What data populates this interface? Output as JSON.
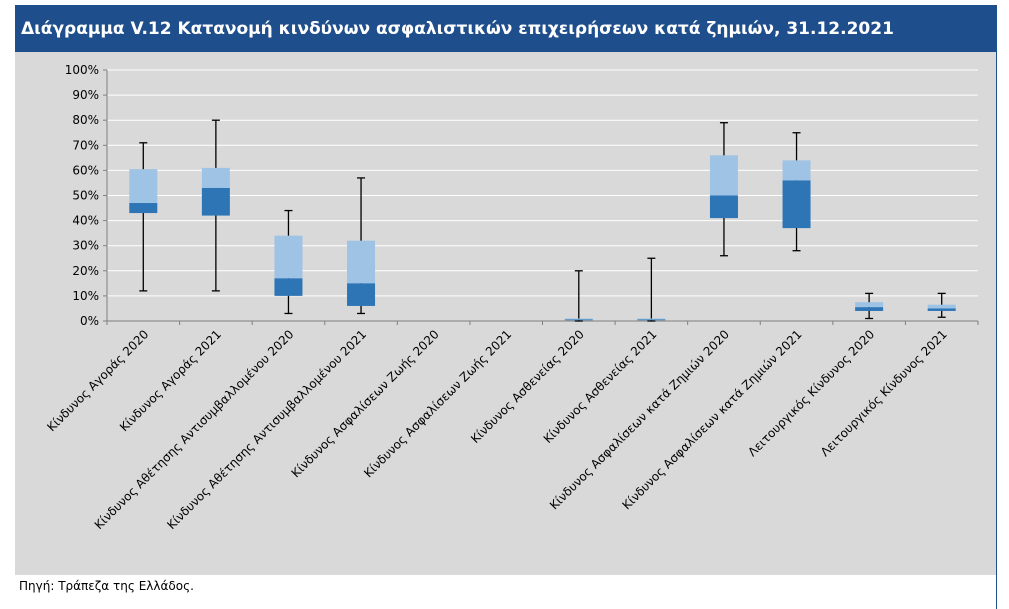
{
  "title": "Διάγραμμα V.12 Κατανομή κινδύνων ασφαλιστικών επιχειρήσεων κατά ζημιών, 31.12.2021",
  "source": "Πηγή: Τράπεζα της Ελλάδος.",
  "chart_data": {
    "type": "boxplot",
    "y_ticks": [
      "0%",
      "10%",
      "20%",
      "30%",
      "40%",
      "50%",
      "60%",
      "70%",
      "80%",
      "90%",
      "100%"
    ],
    "ylim": [
      0,
      100
    ],
    "grid": true,
    "colors": {
      "upper_box": "#9fc3e4",
      "lower_box": "#2e75b6",
      "whisker": "#000000",
      "grid": "#ffffff",
      "axis": "#808080"
    },
    "categories": [
      "Κίνδυνος Αγοράς  2020",
      "Κίνδυνος Αγοράς 2021",
      "Κίνδυνος Αθέτησης Αντισυμβαλλομένου 2020",
      "Κίνδυνος Αθέτησης Αντισυμβαλλομένου 2021",
      "Κίνδυνος Ασφαλίσεων Ζωής 2020",
      "Κίνδυνος Ασφαλίσεων Ζωής 2021",
      "Κίνδυνος Ασθενείας 2020",
      "Κίνδυνος Ασθενείας 2021",
      "Κίνδυνος Ασφαλίσεων κατά Ζημιών 2020",
      "Κίνδυνος Ασφαλίσεων κατά Ζημιών 2021",
      "Λειτουργικός Κίνδυνος 2020",
      "Λειτουργικός Κίνδυνος 2021"
    ],
    "min": [
      12,
      12,
      3,
      3,
      0,
      0,
      0,
      0,
      26,
      28,
      1,
      1.5
    ],
    "q1": [
      43,
      42,
      10,
      6,
      0,
      0,
      0.3,
      0.3,
      41,
      37,
      4,
      4
    ],
    "median": [
      47,
      53,
      17,
      15,
      0,
      0,
      0.6,
      0.6,
      50,
      56,
      5.5,
      5
    ],
    "q3": [
      60.5,
      61,
      34,
      32,
      0,
      0,
      1,
      1,
      66,
      64,
      7.5,
      6.5
    ],
    "max": [
      71,
      80,
      44,
      57,
      0,
      0,
      20,
      25,
      79,
      75,
      11,
      11
    ]
  }
}
